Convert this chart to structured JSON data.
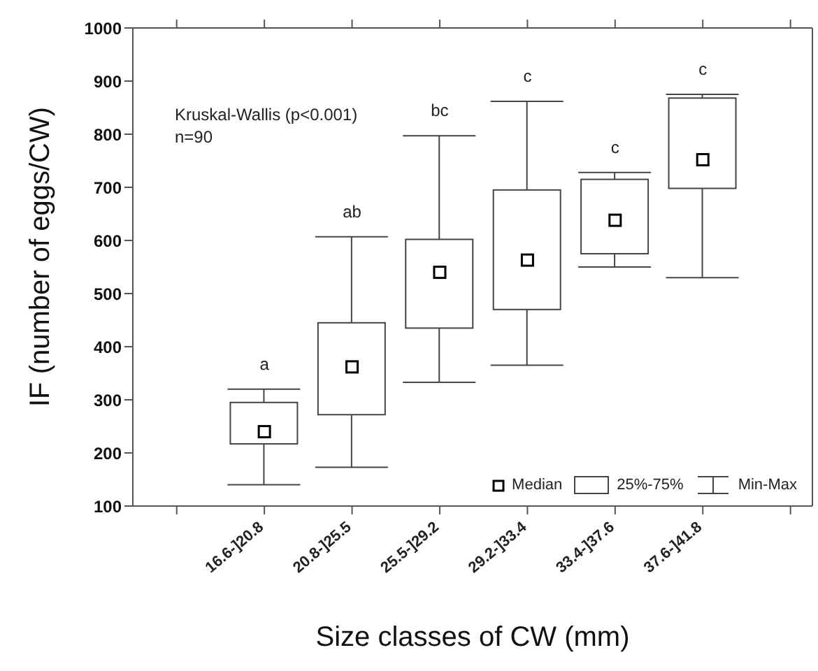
{
  "chart_data": {
    "type": "box",
    "xlabel": "Size classes of CW (mm)",
    "ylabel": "IF (number of eggs/CW)",
    "categories": [
      "16.6-]20.8",
      "20.8-]25.5",
      "25.5-]29.2",
      "29.2-]33.4",
      "33.4-]37.6",
      "37.6-]41.8"
    ],
    "boxes": [
      {
        "low": 140,
        "q1": 217,
        "median": 240,
        "q3": 295,
        "high": 320
      },
      {
        "low": 173,
        "q1": 272,
        "median": 362,
        "q3": 445,
        "high": 607
      },
      {
        "low": 333,
        "q1": 435,
        "median": 540,
        "q3": 602,
        "high": 797
      },
      {
        "low": 365,
        "q1": 470,
        "median": 563,
        "q3": 695,
        "high": 862
      },
      {
        "low": 550,
        "q1": 575,
        "median": 638,
        "q3": 715,
        "high": 728
      },
      {
        "low": 530,
        "q1": 698,
        "median": 752,
        "q3": 868,
        "high": 875
      }
    ],
    "ylim": [
      100,
      1000
    ],
    "yticks": [
      100,
      200,
      300,
      400,
      500,
      600,
      700,
      800,
      900,
      1000
    ],
    "marker": "square",
    "grid": false,
    "annotations": [
      "Kruskal-Wallis (p<0.001)",
      "n=90",
      "Median",
      "25%-75%",
      "Min-Max",
      "a",
      "ab",
      "bc",
      "c",
      "c",
      "c"
    ]
  }
}
